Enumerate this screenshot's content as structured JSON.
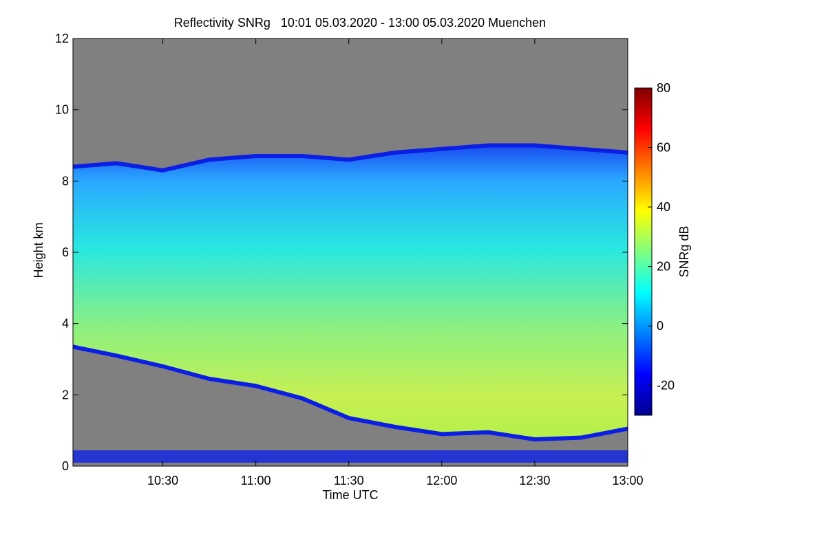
{
  "chart_data": {
    "type": "heatmap",
    "title": "Reflectivity SNRg   10:01 05.03.2020 - 13:00 05.03.2020 Muenchen",
    "xlabel": "Time UTC",
    "ylabel": "Height km",
    "x_range_utc": [
      "10:01",
      "13:00"
    ],
    "x_ticks": [
      "10:30",
      "11:00",
      "11:30",
      "12:00",
      "12:30",
      "13:00"
    ],
    "y_range": [
      0,
      12
    ],
    "y_ticks": [
      0,
      2,
      4,
      6,
      8,
      10,
      12
    ],
    "colorbar": {
      "label": "SNRg dB",
      "range": [
        -30,
        80
      ],
      "ticks": [
        -20,
        0,
        20,
        40,
        60,
        80
      ],
      "colors": [
        "#00008f",
        "#0000ff",
        "#0080ff",
        "#00ffff",
        "#80ff80",
        "#ffff00",
        "#ff8000",
        "#ff0000",
        "#800000"
      ]
    },
    "background_color": "#808080",
    "cloud_top_km": [
      {
        "t": "10:01",
        "h": 8.4
      },
      {
        "t": "10:15",
        "h": 8.5
      },
      {
        "t": "10:30",
        "h": 8.3
      },
      {
        "t": "10:45",
        "h": 8.6
      },
      {
        "t": "11:00",
        "h": 8.7
      },
      {
        "t": "11:15",
        "h": 8.7
      },
      {
        "t": "11:30",
        "h": 8.6
      },
      {
        "t": "11:45",
        "h": 8.8
      },
      {
        "t": "12:00",
        "h": 8.9
      },
      {
        "t": "12:15",
        "h": 9.0
      },
      {
        "t": "12:30",
        "h": 9.0
      },
      {
        "t": "12:45",
        "h": 8.9
      },
      {
        "t": "13:00",
        "h": 8.8
      }
    ],
    "cloud_base_km": [
      {
        "t": "10:01",
        "h": 3.35
      },
      {
        "t": "10:15",
        "h": 3.1
      },
      {
        "t": "10:30",
        "h": 2.8
      },
      {
        "t": "10:45",
        "h": 2.45
      },
      {
        "t": "11:00",
        "h": 2.25
      },
      {
        "t": "11:15",
        "h": 1.9
      },
      {
        "t": "11:30",
        "h": 1.35
      },
      {
        "t": "11:45",
        "h": 1.1
      },
      {
        "t": "12:00",
        "h": 0.9
      },
      {
        "t": "12:15",
        "h": 0.95
      },
      {
        "t": "12:30",
        "h": 0.75
      },
      {
        "t": "12:45",
        "h": 0.8
      },
      {
        "t": "13:00",
        "h": 1.05
      }
    ]
  }
}
